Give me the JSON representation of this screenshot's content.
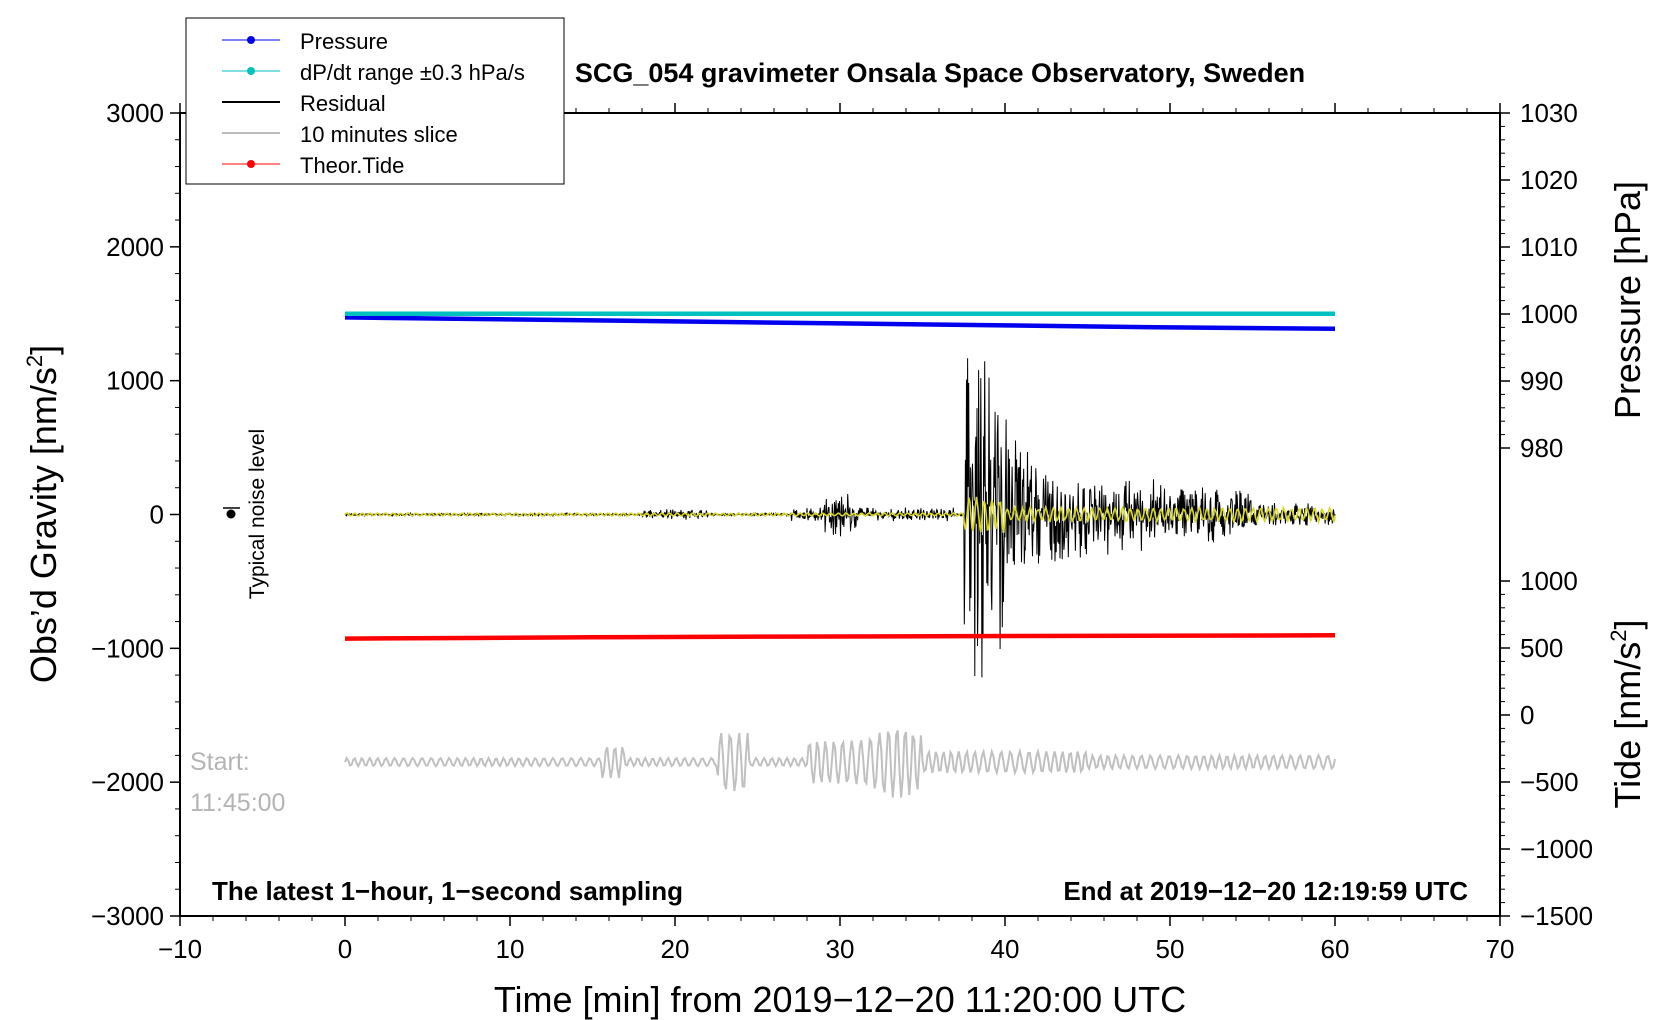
{
  "chart_data": {
    "type": "line",
    "title": "SCG_054 gravimeter Onsala Space Observatory, Sweden",
    "xlabel": "Time [min] from 2019−12−20 11:20:00 UTC",
    "ylabel_left_text": "Obs’d Gravity [nm/s",
    "ylabel_left_sup": "2",
    "ylabel_left_close": "]",
    "ylabel_right_top": "Pressure [hPa]",
    "ylabel_right_bottom_text": "Tide [nm/s",
    "ylabel_right_bottom_sup": "2",
    "ylabel_right_bottom_close": "]",
    "xlim": [
      -10,
      70
    ],
    "ylim": [
      -3000,
      3000
    ],
    "x_ticks": [
      {
        "v": -10,
        "label": "−10"
      },
      {
        "v": 0,
        "label": "0"
      },
      {
        "v": 10,
        "label": "10"
      },
      {
        "v": 20,
        "label": "20"
      },
      {
        "v": 30,
        "label": "30"
      },
      {
        "v": 40,
        "label": "40"
      },
      {
        "v": 50,
        "label": "50"
      },
      {
        "v": 60,
        "label": "60"
      },
      {
        "v": 70,
        "label": "70"
      }
    ],
    "y_ticks_left": [
      {
        "v": 3000,
        "label": "3000"
      },
      {
        "v": 2000,
        "label": "2000"
      },
      {
        "v": 1000,
        "label": "1000"
      },
      {
        "v": 0,
        "label": "0"
      },
      {
        "v": -1000,
        "label": "−1000"
      },
      {
        "v": -2000,
        "label": "−2000"
      },
      {
        "v": -3000,
        "label": "−3000"
      }
    ],
    "pressure_ticks": [
      {
        "v": 1030,
        "label": "1030"
      },
      {
        "v": 1020,
        "label": "1020"
      },
      {
        "v": 1010,
        "label": "1010"
      },
      {
        "v": 1000,
        "label": "1000"
      },
      {
        "v": 990,
        "label": "990"
      },
      {
        "v": 980,
        "label": "980"
      }
    ],
    "tide_ticks": [
      {
        "v": 1000,
        "label": "1000"
      },
      {
        "v": 500,
        "label": "500"
      },
      {
        "v": 0,
        "label": "0"
      },
      {
        "v": -500,
        "label": "−500"
      },
      {
        "v": -1000,
        "label": "−1000"
      },
      {
        "v": -1500,
        "label": "−1500"
      }
    ],
    "series": [
      {
        "name": "Pressure",
        "color": "#0000ee",
        "axis": "pressure",
        "x": [
          0,
          10,
          20,
          30,
          40,
          50,
          60
        ],
        "values": [
          999.5,
          999.2,
          998.9,
          998.6,
          998.3,
          998.0,
          997.8
        ]
      },
      {
        "name": "dP/dt range ±0.3 hPa/s",
        "color": "#00c0c0",
        "axis": "gravity",
        "x": [
          0,
          30,
          60
        ],
        "values": [
          1500,
          1500,
          1500
        ]
      },
      {
        "name": "Residual",
        "color": "#000000",
        "axis": "gravity",
        "style": "seismic",
        "x_range": [
          0,
          60
        ]
      },
      {
        "name": "10 minutes slice",
        "color": "#c0c0c0",
        "axis": "gravity",
        "style": "slice",
        "x_range": [
          0,
          60
        ],
        "baseline": -1850
      },
      {
        "name": "Theor.Tide",
        "color": "#ff0000",
        "axis": "tide",
        "x": [
          0,
          7.5,
          15,
          26,
          44.5,
          60
        ],
        "values": [
          570,
          575,
          580,
          585,
          590,
          595
        ]
      }
    ],
    "legend_position": "top-left",
    "annotations": {
      "noise_label": "Typical noise level",
      "start_label": "Start:",
      "start_time": "11:45:00",
      "bottom_left": "The latest 1−hour, 1−second sampling",
      "bottom_right": "End at 2019−12−20 12:19:59 UTC"
    }
  }
}
